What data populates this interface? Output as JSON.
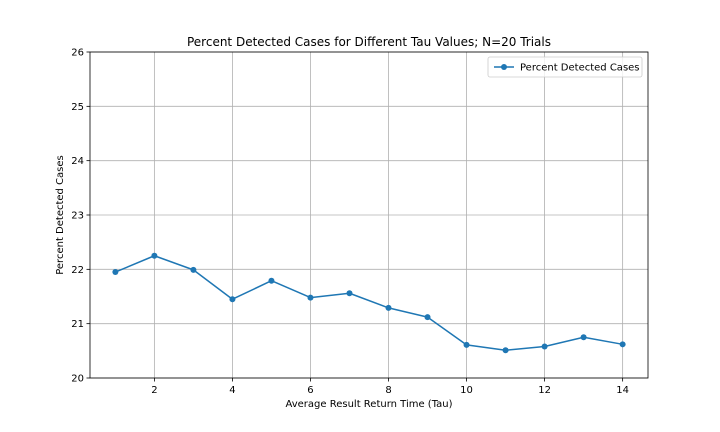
{
  "chart_data": {
    "type": "line",
    "title": "Percent Detected Cases for Different Tau Values; N=20 Trials",
    "xlabel": "Average Result Return Time (Tau)",
    "ylabel": "Percent Detected Cases",
    "xlim": [
      0.35,
      14.65
    ],
    "ylim": [
      20,
      26
    ],
    "xticks": [
      2,
      4,
      6,
      8,
      10,
      12,
      14
    ],
    "yticks": [
      20,
      21,
      22,
      23,
      24,
      25,
      26
    ],
    "grid": true,
    "legend_position": "top-right",
    "series": [
      {
        "name": "Percent Detected Cases",
        "color": "#1f77b4",
        "marker": "circle",
        "x": [
          1,
          2,
          3,
          4,
          5,
          6,
          7,
          8,
          9,
          10,
          11,
          12,
          13,
          14
        ],
        "y": [
          21.95,
          22.25,
          21.99,
          21.45,
          21.79,
          21.48,
          21.56,
          21.29,
          21.12,
          20.61,
          20.51,
          20.58,
          20.75,
          20.62
        ]
      }
    ]
  }
}
